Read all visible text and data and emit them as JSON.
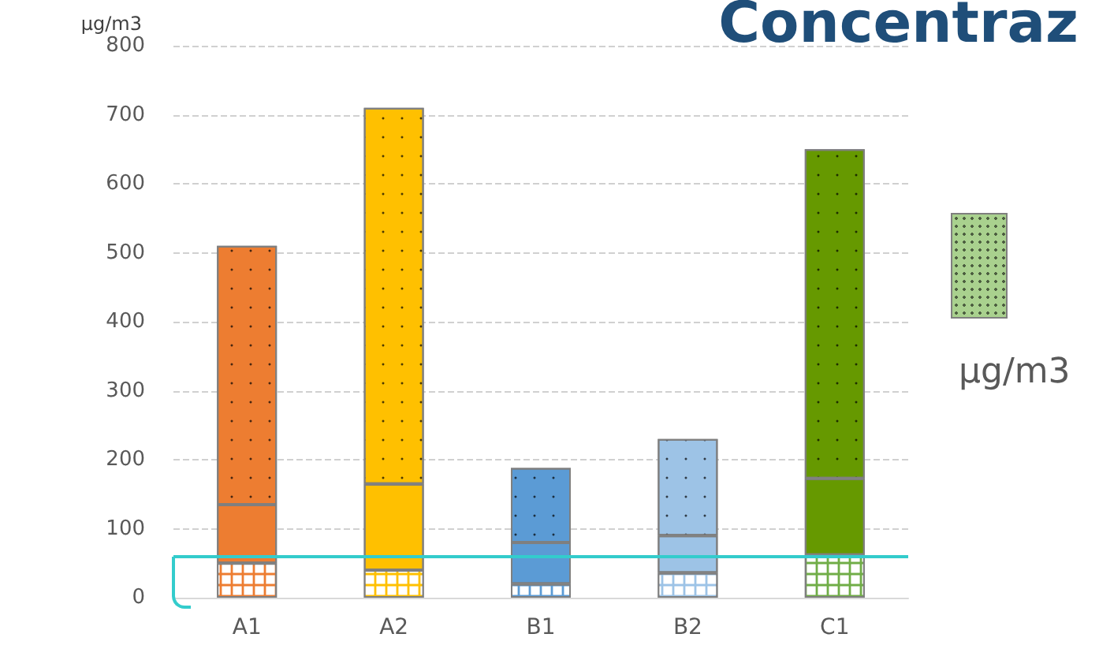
{
  "chart_data": {
    "type": "bar",
    "title": "Concentraz",
    "ylabel": "µg/m3",
    "annotations": [
      "µg/m3"
    ],
    "categories": [
      "A1",
      "A2",
      "B1",
      "B2",
      "C1"
    ],
    "stacked": true,
    "series": [
      {
        "colors": [
          "#ed7d31",
          "#ffc000",
          "#5b9bd5",
          "#9dc3e6",
          "#70ad47"
        ],
        "values": [
          50,
          40,
          20,
          36,
          62
        ]
      },
      {
        "colors": [
          "#ed7d31",
          "#ffc000",
          "#5b9bd5",
          "#9dc3e6",
          "#669900"
        ],
        "values": [
          85,
          125,
          60,
          54,
          111
        ]
      },
      {
        "colors": [
          "#ed7d31",
          "#ffc000",
          "#5b9bd5",
          "#9dc3e6",
          "#669900"
        ],
        "values": [
          375,
          545,
          108,
          140,
          477
        ]
      }
    ],
    "ref_lines": [
      {
        "axis": "y",
        "value": 60,
        "color": "#33cccc"
      }
    ],
    "ylim": [
      0,
      800
    ],
    "yticks": [
      0,
      100,
      200,
      300,
      400,
      500,
      600,
      700,
      800
    ],
    "grid": "y"
  }
}
